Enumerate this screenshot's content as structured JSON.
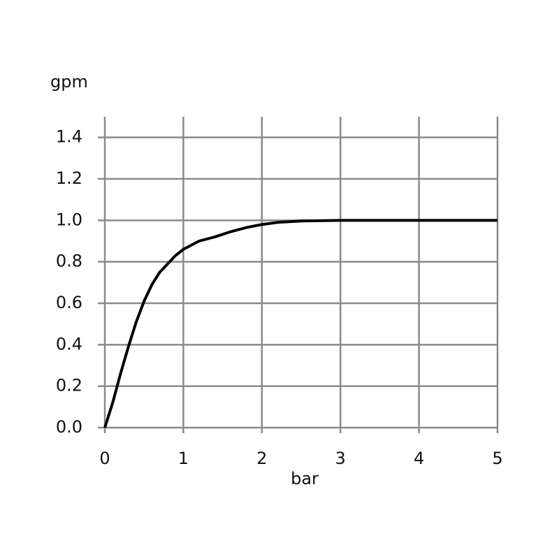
{
  "chart_data": {
    "type": "line",
    "y_label": "gpm",
    "x_label": "bar",
    "x": [
      0,
      0.1,
      0.2,
      0.3,
      0.4,
      0.5,
      0.6,
      0.7,
      0.8,
      0.9,
      1.0,
      1.2,
      1.4,
      1.6,
      1.8,
      2.0,
      2.2,
      2.5,
      3,
      4,
      5
    ],
    "values": [
      0,
      0.12,
      0.26,
      0.39,
      0.51,
      0.61,
      0.69,
      0.75,
      0.79,
      0.83,
      0.86,
      0.9,
      0.92,
      0.945,
      0.965,
      0.98,
      0.99,
      0.997,
      1.0,
      1.0,
      1.0
    ],
    "color": "#000000",
    "xlim": [
      0,
      5
    ],
    "xticks": [
      0,
      1,
      2,
      3,
      4,
      5
    ],
    "ylim": [
      0,
      1.5
    ],
    "yticks": [
      {
        "value": 0,
        "label": "0.0"
      },
      0.2,
      0.4,
      0.6,
      0.8,
      {
        "value": 1,
        "label": "1.0"
      },
      1.2,
      1.4
    ],
    "grid": true
  }
}
